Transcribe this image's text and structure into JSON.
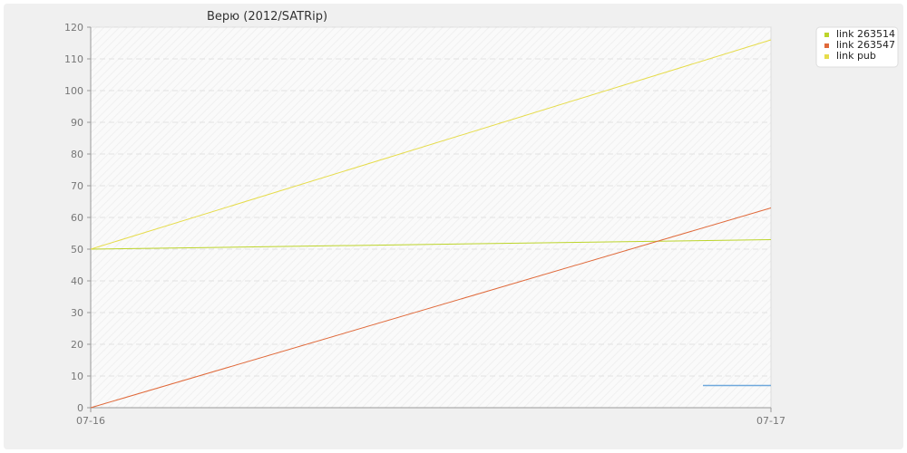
{
  "chart_data": {
    "type": "line",
    "title": "Верю (2012/SATRip)",
    "xlabel": "",
    "ylabel": "",
    "x": [
      "07-16",
      "07-17"
    ],
    "ylim": [
      0,
      120
    ],
    "yticks": [
      0,
      10,
      20,
      30,
      40,
      50,
      60,
      70,
      80,
      90,
      100,
      110,
      120
    ],
    "grid": true,
    "legend_position": "top-right",
    "series": [
      {
        "name": "link 263514",
        "color": "#bcd42a",
        "points": [
          [
            0,
            50
          ],
          [
            1,
            53
          ]
        ]
      },
      {
        "name": "link 263547",
        "color": "#e0693a",
        "points": [
          [
            0,
            0
          ],
          [
            1,
            63
          ]
        ]
      },
      {
        "name": "link pub",
        "color": "#e6dc4a",
        "points": [
          [
            0,
            50
          ],
          [
            1,
            116
          ]
        ]
      },
      {
        "name": "",
        "color": "#6fa8dc",
        "points": [
          [
            0.9,
            7
          ],
          [
            1,
            7
          ]
        ]
      }
    ]
  }
}
